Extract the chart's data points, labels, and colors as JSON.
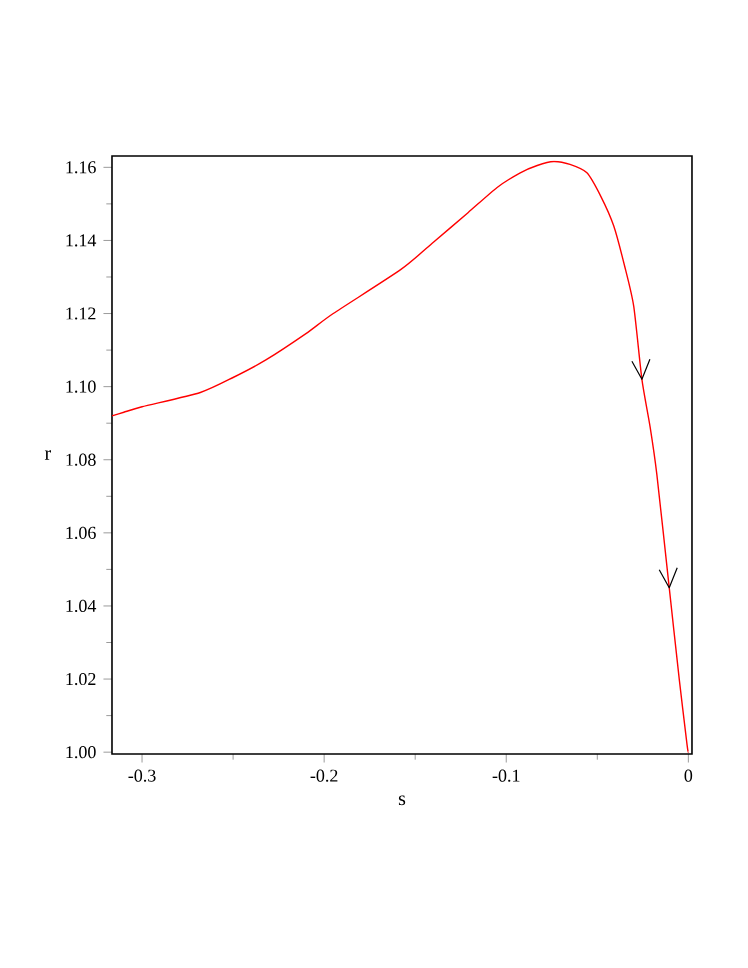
{
  "chart_data": {
    "type": "line",
    "xlabel": "s",
    "ylabel": "r",
    "x": [
      -0.3165,
      -0.31,
      -0.3,
      -0.268,
      -0.25,
      -0.232,
      -0.21,
      -0.195,
      -0.158,
      -0.14,
      -0.121,
      -0.105,
      -0.0923,
      -0.083,
      -0.074,
      -0.065,
      -0.0557,
      -0.048,
      -0.041,
      -0.035,
      -0.03,
      -0.0255,
      -0.021,
      -0.0173,
      -0.0105,
      -0.005,
      -0.0007,
      0
    ],
    "series": [
      {
        "color": "#ff0000",
        "values": [
          1.092,
          1.093,
          1.0945,
          1.0984,
          1.1025,
          1.1073,
          1.1145,
          1.12,
          1.132,
          1.1395,
          1.1476,
          1.1545,
          1.1585,
          1.1605,
          1.1616,
          1.1608,
          1.1585,
          1.152,
          1.144,
          1.133,
          1.122,
          1.102,
          1.089,
          1.076,
          1.045,
          1.02,
          1.002,
          1.0
        ]
      }
    ],
    "xlim": [
      -0.3165,
      0.002
    ],
    "ylim": [
      0.9995,
      1.1631
    ],
    "xticks": [
      -0.3,
      -0.2,
      -0.1,
      0
    ],
    "yticks": [
      {
        "value": 1.0,
        "label": "1.00"
      },
      {
        "value": 1.02,
        "label": "1.02"
      },
      {
        "value": 1.04,
        "label": "1.04"
      },
      {
        "value": 1.06,
        "label": "1.06"
      },
      {
        "value": 1.08,
        "label": "1.08"
      },
      {
        "value": 1.1,
        "label": "1.10"
      },
      {
        "value": 1.12,
        "label": "1.12"
      },
      {
        "value": 1.14,
        "label": "1.14"
      },
      {
        "value": 1.16,
        "label": "1.16"
      }
    ],
    "grid": false,
    "marker": "none",
    "line_style": "solid"
  }
}
